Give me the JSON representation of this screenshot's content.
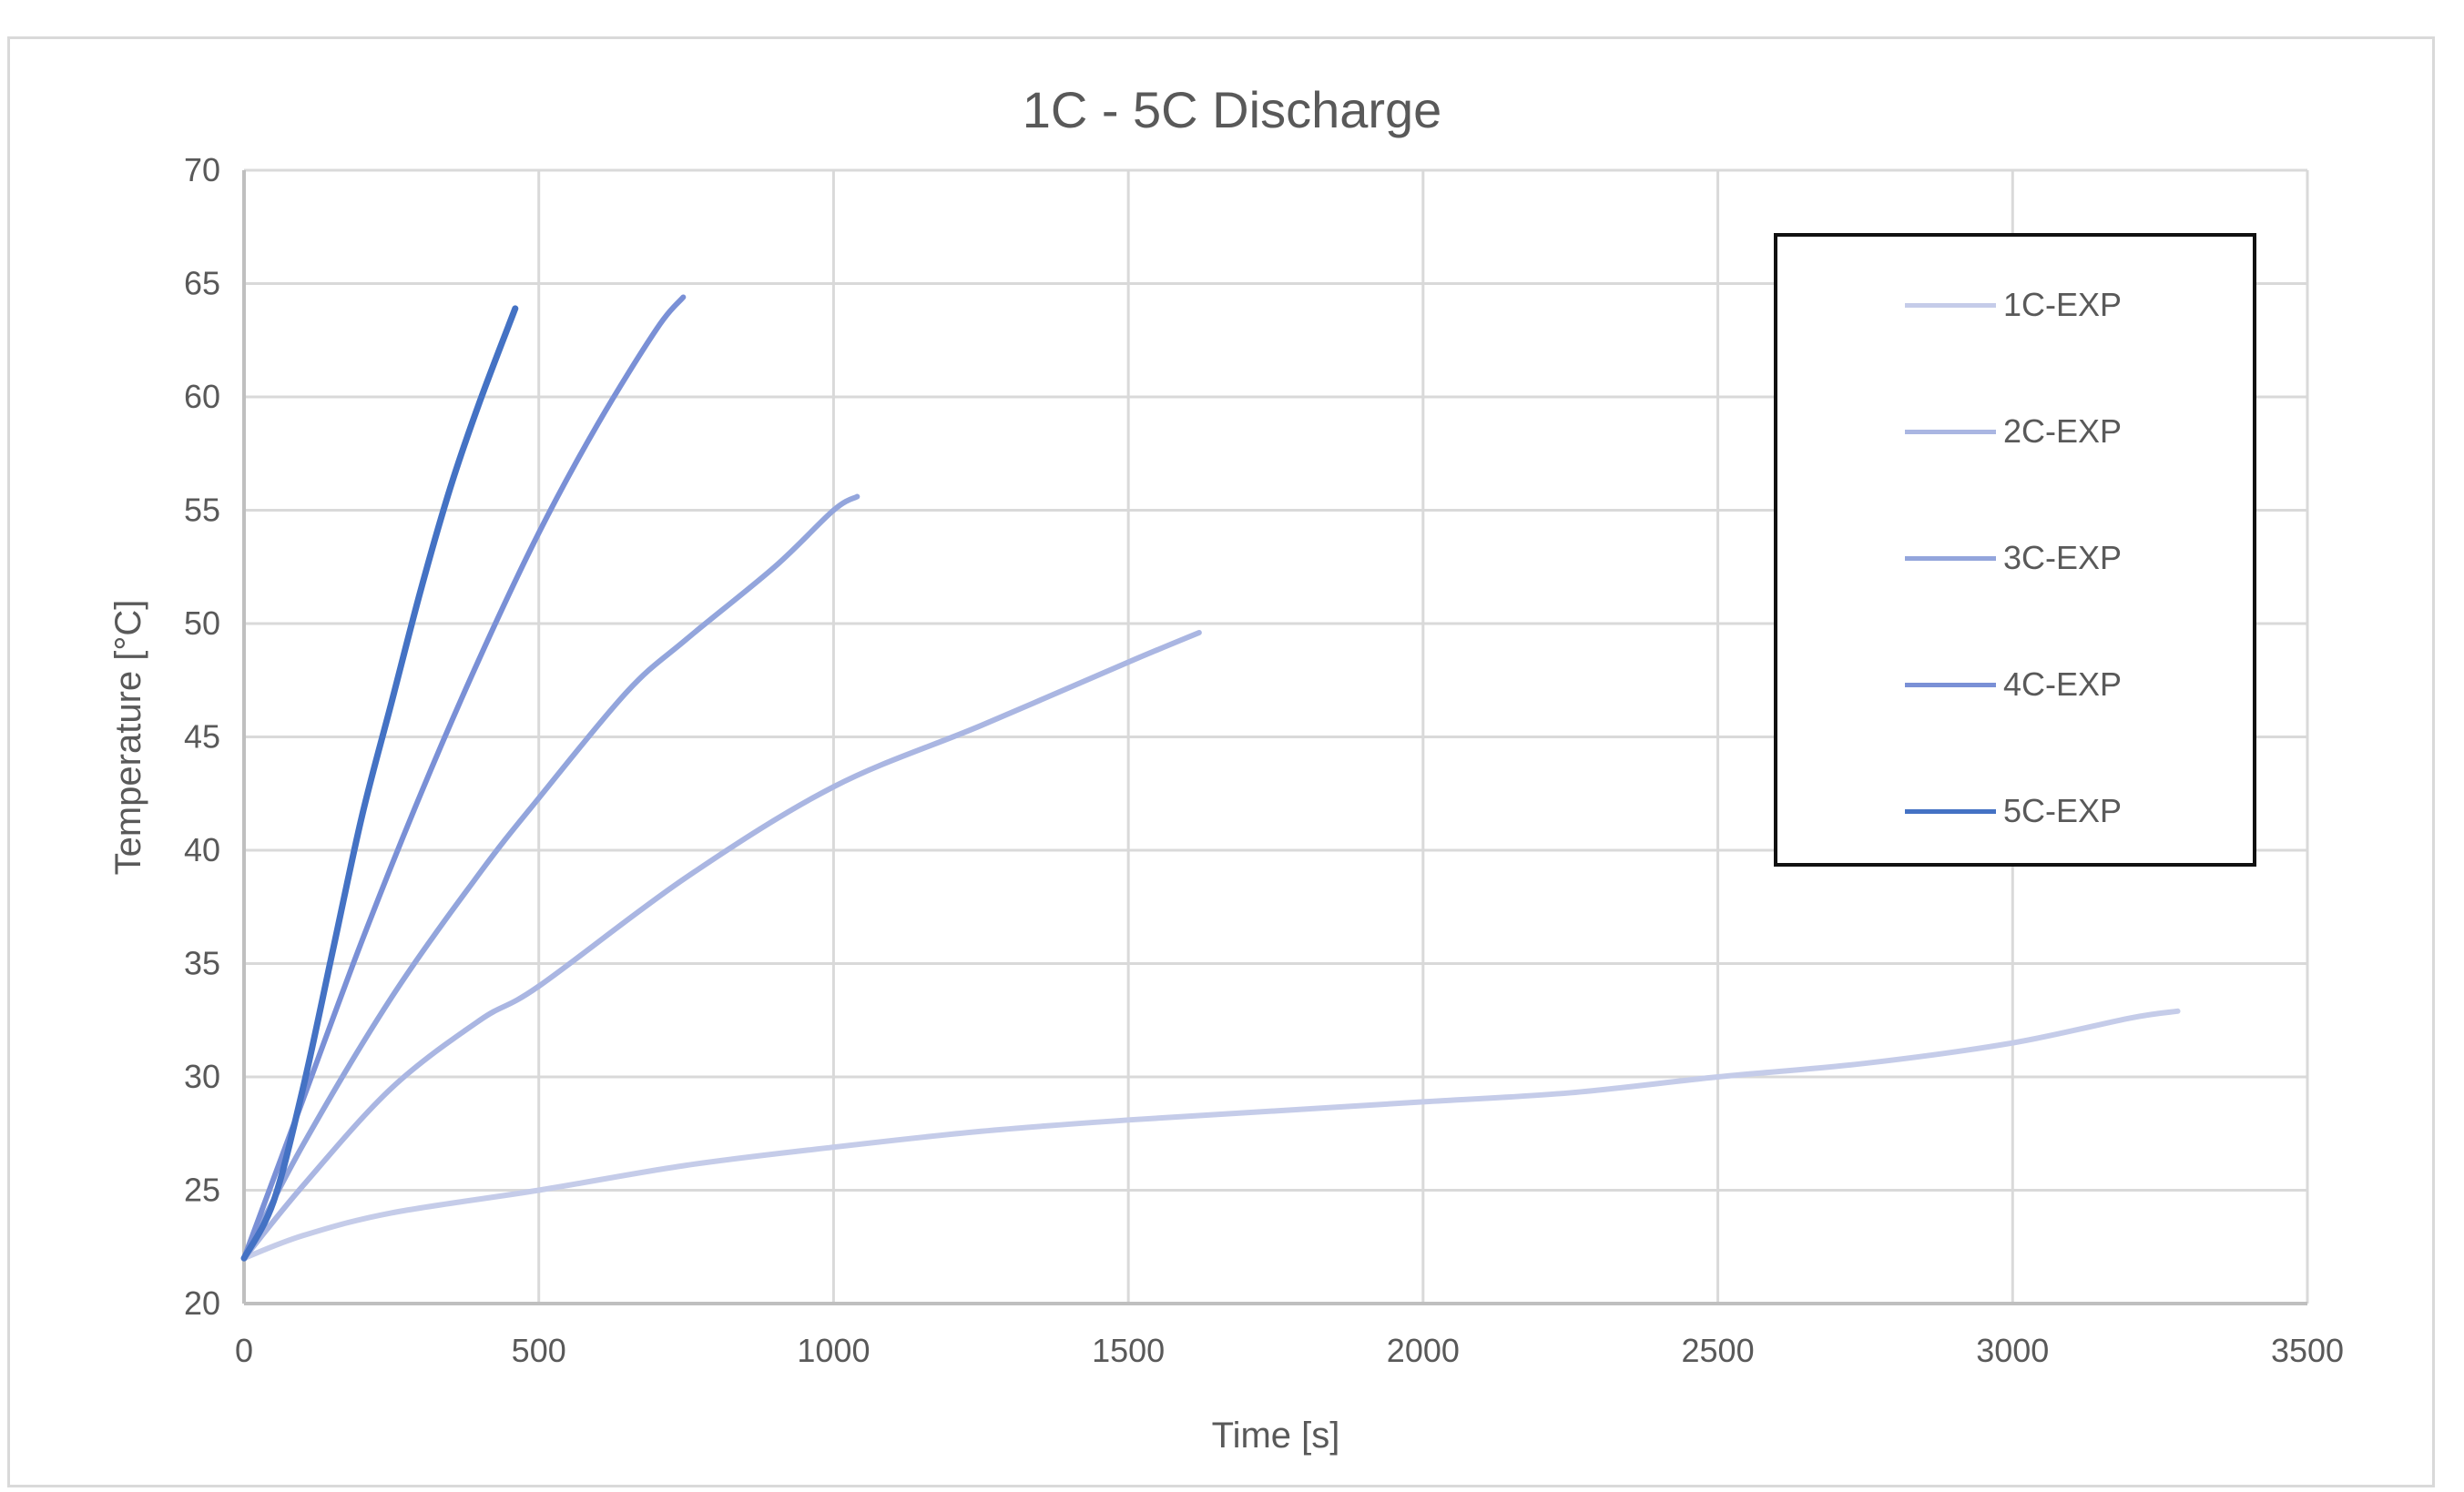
{
  "chart_data": {
    "type": "line",
    "title": "1C - 5C Discharge",
    "xlabel": "Time [s]",
    "ylabel": "Temperature [°C]",
    "xlim": [
      0,
      3500
    ],
    "ylim": [
      20,
      70
    ],
    "x_ticks": [
      0,
      500,
      1000,
      1500,
      2000,
      2500,
      3000,
      3500
    ],
    "y_ticks": [
      20,
      25,
      30,
      35,
      40,
      45,
      50,
      55,
      60,
      65,
      70
    ],
    "grid": true,
    "legend_position": "upper-right (inside, boxed)",
    "series": [
      {
        "name": "1C-EXP",
        "color": "#C5CCE9",
        "x": [
          0,
          100,
          250,
          500,
          750,
          1000,
          1250,
          1500,
          1750,
          2000,
          2250,
          2500,
          2750,
          3000,
          3200,
          3280
        ],
        "y": [
          22.0,
          23.0,
          24.0,
          25.0,
          26.1,
          26.9,
          27.6,
          28.1,
          28.5,
          28.9,
          29.3,
          30.0,
          30.6,
          31.5,
          32.6,
          32.9
        ]
      },
      {
        "name": "2C-EXP",
        "color": "#AAB6E2",
        "x": [
          0,
          100,
          250,
          400,
          500,
          750,
          1000,
          1250,
          1500,
          1620
        ],
        "y": [
          22.0,
          25.2,
          29.5,
          32.5,
          34.0,
          38.8,
          42.8,
          45.5,
          48.3,
          49.6
        ]
      },
      {
        "name": "3C-EXP",
        "color": "#93A5DC",
        "x": [
          0,
          100,
          250,
          400,
          500,
          650,
          750,
          900,
          1000,
          1040
        ],
        "y": [
          22.0,
          27.0,
          33.5,
          39.0,
          42.3,
          47.0,
          49.3,
          52.5,
          55.0,
          55.6
        ]
      },
      {
        "name": "4C-EXP",
        "color": "#7A90D6",
        "x": [
          0,
          50,
          100,
          200,
          300,
          400,
          500,
          600,
          700,
          745
        ],
        "y": [
          22.0,
          25.5,
          29.0,
          36.0,
          42.5,
          48.5,
          54.0,
          58.8,
          63.0,
          64.4
        ]
      },
      {
        "name": "5C-EXP",
        "color": "#4472C4",
        "x": [
          0,
          50,
          100,
          150,
          200,
          250,
          300,
          350,
          400,
          460
        ],
        "y": [
          22.0,
          24.5,
          29.5,
          35.5,
          41.5,
          46.5,
          51.5,
          56.0,
          59.8,
          63.9
        ]
      }
    ]
  }
}
